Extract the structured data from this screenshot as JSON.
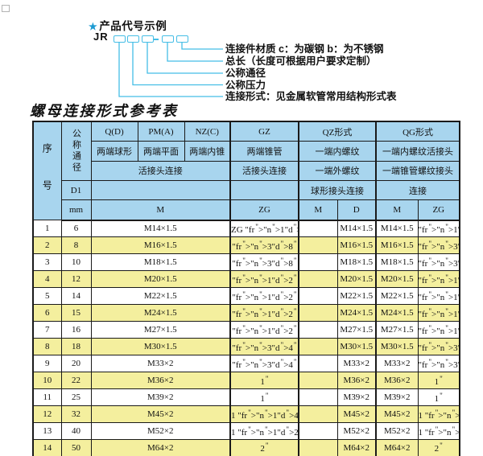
{
  "diagram": {
    "example_title": "产品代号示例",
    "star": "★",
    "prefix": "JR",
    "labels": [
      "连接件材质  c：为碳钢  b：为不锈钢",
      "总长（长度可根据用户要求定制）",
      "公称通径",
      "公称压力",
      "连接形式：见金属软管常用结构形式表"
    ]
  },
  "title": "螺母连接形式参考表",
  "table": {
    "header": {
      "seq": "序号",
      "nominal_diameter": "公称通径",
      "d1": "D1",
      "mm": "mm",
      "groups": [
        "Q(D)",
        "PM(A)",
        "NZ(C)",
        "GZ",
        "QZ形式",
        "QG形式"
      ],
      "ends": [
        "两端球形",
        "两端平面",
        "两端内锥",
        "两端锥管",
        "一端内螺纹",
        "一端内螺纹活接头"
      ],
      "conn": [
        "活接头连接",
        "活接头连接",
        "一端外螺纹",
        "一端锥管螺纹接头"
      ],
      "conn2": [
        "球形接头连接",
        "连接"
      ],
      "units": [
        "M",
        "ZG",
        "M",
        "D",
        "M",
        "ZG"
      ]
    },
    "rows": [
      [
        "1",
        "6",
        "M14×1.5",
        "ZG 1/4\"",
        "",
        "M14×1.5",
        "M14×1.5",
        "1/4\""
      ],
      [
        "2",
        "8",
        "M16×1.5",
        "3/8\"",
        "",
        "M16×1.5",
        "M16×1.5",
        "3/8\""
      ],
      [
        "3",
        "10",
        "M18×1.5",
        "3/8\"",
        "",
        "M18×1.5",
        "M18×1.5",
        "3/8\""
      ],
      [
        "4",
        "12",
        "M20×1.5",
        "1/2\"",
        "",
        "M20×1.5",
        "M20×1.5",
        "1/2\""
      ],
      [
        "5",
        "14",
        "M22×1.5",
        "1/2\"",
        "",
        "M22×1.5",
        "M22×1.5",
        "1/2\""
      ],
      [
        "6",
        "15",
        "M24×1.5",
        "1/2\"",
        "",
        "M24×1.5",
        "M24×1.5",
        "1/2\""
      ],
      [
        "7",
        "16",
        "M27×1.5",
        "1/2\"",
        "",
        "M27×1.5",
        "M27×1.5",
        "1/2\""
      ],
      [
        "8",
        "18",
        "M30×1.5",
        "3/4\"",
        "",
        "M30×1.5",
        "M30×1.5",
        "3/4\""
      ],
      [
        "9",
        "20",
        "M33×2",
        "3/4\"",
        "",
        "M33×2",
        "M33×2",
        "3/4\""
      ],
      [
        "10",
        "22",
        "M36×2",
        "1\"",
        "",
        "M36×2",
        "M36×2",
        "1\""
      ],
      [
        "11",
        "25",
        "M39×2",
        "1\"",
        "",
        "M39×2",
        "M39×2",
        "1\""
      ],
      [
        "12",
        "32",
        "M45×2",
        "1 1/4\"",
        "",
        "M45×2",
        "M45×2",
        "1 1/4\""
      ],
      [
        "13",
        "40",
        "M52×2",
        "1 1/2\"",
        "",
        "M52×2",
        "M52×2",
        "1 1/2\""
      ],
      [
        "14",
        "50",
        "M64×2",
        "2\"",
        "",
        "M64×2",
        "M64×2",
        "2\""
      ]
    ]
  },
  "colors": {
    "header_bg": "#a8d5ee",
    "row_alt_bg": "#f4ef9e",
    "diagram_line": "#45bee6",
    "star_blue": "#1b9ad2",
    "border": "#1a1a1a"
  }
}
